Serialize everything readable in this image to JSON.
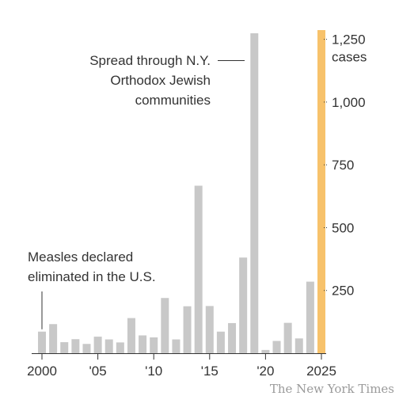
{
  "chart_data": {
    "type": "bar",
    "x": [
      2000,
      2001,
      2002,
      2003,
      2004,
      2005,
      2006,
      2007,
      2008,
      2009,
      2010,
      2011,
      2012,
      2013,
      2014,
      2015,
      2016,
      2017,
      2018,
      2019,
      2020,
      2021,
      2022,
      2023,
      2024,
      2025
    ],
    "values": [
      86,
      116,
      44,
      56,
      37,
      66,
      55,
      43,
      140,
      71,
      63,
      220,
      55,
      187,
      667,
      188,
      86,
      120,
      381,
      1274,
      13,
      49,
      121,
      59,
      285,
      1274
    ],
    "x_tick_labels": [
      "2000",
      "'05",
      "'10",
      "'15",
      "'20",
      "2025"
    ],
    "x_tick_values": [
      2000,
      2005,
      2010,
      2015,
      2020,
      2025
    ],
    "y_tick_labels": [
      "250",
      "500",
      "750",
      "1,000",
      "1,250"
    ],
    "y_tick_values": [
      250,
      500,
      750,
      1000,
      1250
    ],
    "y_unit": "cases",
    "ylim": [
      0,
      1300
    ],
    "grid": false,
    "colors": {
      "bar": "#c8c8c8",
      "highlight": "#f7c26b",
      "text": "#333333"
    },
    "highlight_year": 2025,
    "annotations": [
      {
        "lines": [
          "Spread through N.Y.",
          "Orthodox Jewish",
          "communities"
        ],
        "x": 2019
      },
      {
        "lines": [
          "Measles declared",
          "eliminated in the U.S."
        ],
        "x": 2000
      }
    ]
  },
  "credit": "The New York Times"
}
